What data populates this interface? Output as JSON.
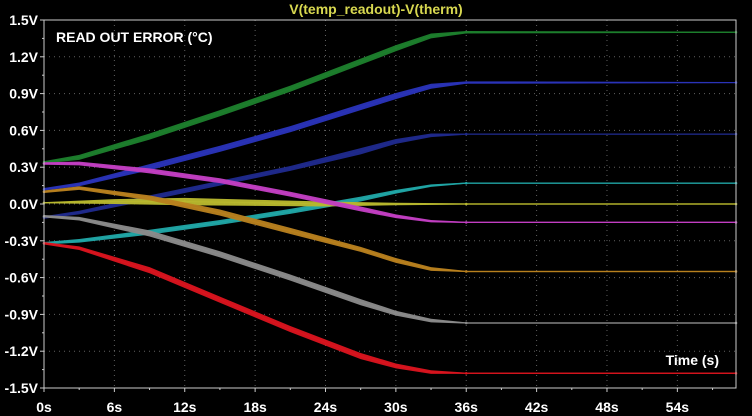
{
  "chart_data": {
    "type": "line",
    "title": "V(temp_readout)-V(therm)",
    "annotation_top_left": "READ OUT ERROR (°C)",
    "annotation_bottom_right": "Time (s)",
    "x_unit": "s",
    "y_unit": "V",
    "xlim": [
      0,
      59
    ],
    "ylim": [
      -1.5,
      1.5
    ],
    "x_ticks": [
      0,
      6,
      12,
      18,
      24,
      30,
      36,
      42,
      48,
      54
    ],
    "x_tick_labels": [
      "0s",
      "6s",
      "12s",
      "18s",
      "24s",
      "30s",
      "36s",
      "42s",
      "48s",
      "54s"
    ],
    "y_ticks": [
      1.5,
      1.2,
      0.9,
      0.6,
      0.3,
      0.0,
      -0.3,
      -0.6,
      -0.9,
      -1.2,
      -1.5
    ],
    "y_tick_labels": [
      "1.5V",
      "1.2V",
      "0.9V",
      "0.6V",
      "0.3V",
      "0.0V",
      "-0.3V",
      "-0.6V",
      "-0.9V",
      "-1.2V",
      "-1.5V"
    ],
    "grid": true,
    "grid_style": "dotted",
    "colors": {
      "background": "#000000",
      "title": "#d8d850",
      "axis": "#cccccc",
      "grid": "#8a8a8a",
      "text": "#ffffff"
    },
    "series": [
      {
        "color": "#1d7f2d",
        "points": [
          [
            0,
            0.34
          ],
          [
            3,
            0.38
          ],
          [
            9,
            0.55
          ],
          [
            15,
            0.74
          ],
          [
            21,
            0.94
          ],
          [
            27,
            1.16
          ],
          [
            30,
            1.27
          ],
          [
            33,
            1.37
          ],
          [
            36,
            1.4
          ],
          [
            59,
            1.4
          ]
        ],
        "band": [
          0.02,
          0.04,
          0.05,
          0.05,
          0.05,
          0.05,
          0.05,
          0.04,
          0.02,
          0.01
        ]
      },
      {
        "color": "#2a33b8",
        "points": [
          [
            0,
            0.12
          ],
          [
            3,
            0.16
          ],
          [
            9,
            0.3
          ],
          [
            15,
            0.45
          ],
          [
            21,
            0.61
          ],
          [
            27,
            0.79
          ],
          [
            30,
            0.88
          ],
          [
            33,
            0.96
          ],
          [
            36,
            0.99
          ],
          [
            59,
            0.99
          ]
        ],
        "band": [
          0.02,
          0.03,
          0.05,
          0.05,
          0.05,
          0.05,
          0.05,
          0.04,
          0.02,
          0.01
        ]
      },
      {
        "color": "#1f2a8c",
        "points": [
          [
            0,
            -0.11
          ],
          [
            3,
            -0.07
          ],
          [
            9,
            0.05
          ],
          [
            15,
            0.17
          ],
          [
            21,
            0.29
          ],
          [
            27,
            0.43
          ],
          [
            30,
            0.51
          ],
          [
            33,
            0.56
          ],
          [
            36,
            0.57
          ],
          [
            59,
            0.57
          ]
        ],
        "band": [
          0.02,
          0.03,
          0.04,
          0.04,
          0.04,
          0.05,
          0.04,
          0.03,
          0.01,
          0.01
        ]
      },
      {
        "color": "#20a6a6",
        "points": [
          [
            0,
            -0.32
          ],
          [
            3,
            -0.3
          ],
          [
            9,
            -0.23
          ],
          [
            15,
            -0.15
          ],
          [
            21,
            -0.06
          ],
          [
            27,
            0.04
          ],
          [
            30,
            0.1
          ],
          [
            33,
            0.15
          ],
          [
            36,
            0.17
          ],
          [
            59,
            0.17
          ]
        ],
        "band": [
          0.02,
          0.03,
          0.04,
          0.04,
          0.04,
          0.04,
          0.03,
          0.02,
          0.01,
          0.01
        ]
      },
      {
        "color": "#b8b82e",
        "points": [
          [
            0,
            0.01
          ],
          [
            6,
            0.02
          ],
          [
            12,
            0.02
          ],
          [
            18,
            0.01
          ],
          [
            24,
            0.0
          ],
          [
            30,
            0.0
          ],
          [
            36,
            0.0
          ],
          [
            59,
            0.0
          ]
        ],
        "band": [
          0.01,
          0.04,
          0.06,
          0.05,
          0.04,
          0.02,
          0.01,
          0.01
        ]
      },
      {
        "color": "#c23ec2",
        "points": [
          [
            0,
            0.33
          ],
          [
            3,
            0.33
          ],
          [
            9,
            0.27
          ],
          [
            15,
            0.19
          ],
          [
            21,
            0.08
          ],
          [
            27,
            -0.04
          ],
          [
            30,
            -0.1
          ],
          [
            33,
            -0.14
          ],
          [
            36,
            -0.15
          ],
          [
            59,
            -0.15
          ]
        ],
        "band": [
          0.02,
          0.03,
          0.04,
          0.04,
          0.04,
          0.04,
          0.03,
          0.02,
          0.01,
          0.01
        ]
      },
      {
        "color": "#b8801e",
        "points": [
          [
            0,
            0.1
          ],
          [
            3,
            0.13
          ],
          [
            9,
            0.05
          ],
          [
            15,
            -0.07
          ],
          [
            21,
            -0.22
          ],
          [
            27,
            -0.37
          ],
          [
            30,
            -0.46
          ],
          [
            33,
            -0.53
          ],
          [
            36,
            -0.55
          ],
          [
            59,
            -0.55
          ]
        ],
        "band": [
          0.02,
          0.03,
          0.04,
          0.05,
          0.05,
          0.04,
          0.04,
          0.03,
          0.01,
          0.01
        ]
      },
      {
        "color": "#8a8a8a",
        "points": [
          [
            0,
            -0.1
          ],
          [
            3,
            -0.12
          ],
          [
            9,
            -0.24
          ],
          [
            15,
            -0.41
          ],
          [
            21,
            -0.6
          ],
          [
            27,
            -0.8
          ],
          [
            30,
            -0.89
          ],
          [
            33,
            -0.95
          ],
          [
            36,
            -0.97
          ],
          [
            59,
            -0.97
          ]
        ],
        "band": [
          0.02,
          0.03,
          0.05,
          0.05,
          0.05,
          0.05,
          0.04,
          0.03,
          0.01,
          0.01
        ]
      },
      {
        "color": "#d9141e",
        "points": [
          [
            0,
            -0.32
          ],
          [
            3,
            -0.36
          ],
          [
            9,
            -0.54
          ],
          [
            15,
            -0.78
          ],
          [
            21,
            -1.02
          ],
          [
            27,
            -1.24
          ],
          [
            30,
            -1.32
          ],
          [
            33,
            -1.37
          ],
          [
            36,
            -1.38
          ],
          [
            59,
            -1.38
          ]
        ],
        "band": [
          0.02,
          0.03,
          0.05,
          0.05,
          0.05,
          0.05,
          0.04,
          0.03,
          0.01,
          0.01
        ]
      }
    ]
  }
}
